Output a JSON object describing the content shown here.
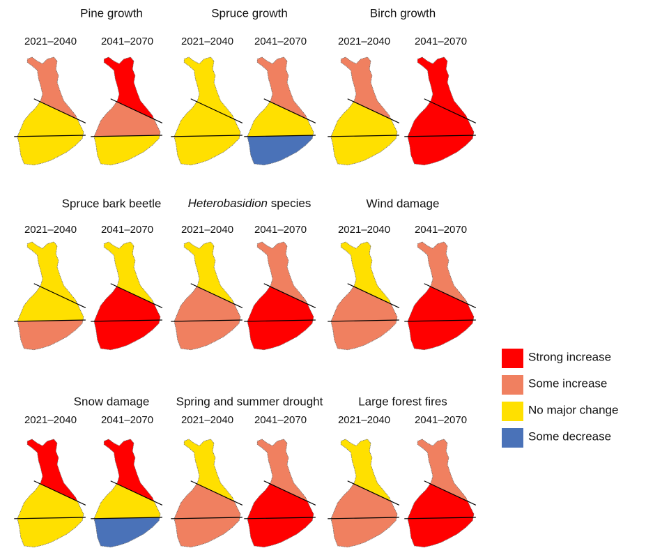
{
  "panels": [
    {
      "title": "Pine growth",
      "periods": [
        "2021–2040",
        "2041–2070"
      ],
      "maps": [
        [
          "Some increase",
          "No major change",
          "No major change"
        ],
        [
          "Strong increase",
          "Some increase",
          "No major change"
        ]
      ]
    },
    {
      "title": "Spruce growth",
      "periods": [
        "2021–2040",
        "2041–2070"
      ],
      "maps": [
        [
          "No major change",
          "No major change",
          "No major change"
        ],
        [
          "Some increase",
          "No major change",
          "Some decrease"
        ]
      ]
    },
    {
      "title": "Birch growth",
      "periods": [
        "2021–2040",
        "2041–2070"
      ],
      "maps": [
        [
          "Some increase",
          "No major change",
          "No major change"
        ],
        [
          "Strong increase",
          "Strong increase",
          "Strong increase"
        ]
      ]
    },
    {
      "title": "Spruce bark beetle",
      "periods": [
        "2021–2040",
        "2041–2070"
      ],
      "maps": [
        [
          "No major change",
          "No major change",
          "Some increase"
        ],
        [
          "No major change",
          "Strong increase",
          "Strong increase"
        ]
      ]
    },
    {
      "title_italic": "Heterobasidion",
      "title": "species",
      "periods": [
        "2021–2040",
        "2041–2070"
      ],
      "maps": [
        [
          "No major change",
          "Some increase",
          "Some increase"
        ],
        [
          "Some increase",
          "Strong increase",
          "Strong increase"
        ]
      ]
    },
    {
      "title": "Wind damage",
      "periods": [
        "2021–2040",
        "2041–2070"
      ],
      "maps": [
        [
          "No major change",
          "Some increase",
          "Some increase"
        ],
        [
          "Some increase",
          "Strong increase",
          "Strong increase"
        ]
      ]
    },
    {
      "title": "Snow damage",
      "periods": [
        "2021–2040",
        "2041–2070"
      ],
      "maps": [
        [
          "Strong increase",
          "No major change",
          "No major change"
        ],
        [
          "Strong increase",
          "No major change",
          "Some decrease"
        ]
      ]
    },
    {
      "title": "Spring and summer drought",
      "periods": [
        "2021–2040",
        "2041–2070"
      ],
      "maps": [
        [
          "No major change",
          "Some increase",
          "Some increase"
        ],
        [
          "Some increase",
          "Strong increase",
          "Strong increase"
        ]
      ]
    },
    {
      "title": "Large forest fires",
      "periods": [
        "2021–2040",
        "2041–2070"
      ],
      "maps": [
        [
          "No major change",
          "Some increase",
          "Some increase"
        ],
        [
          "Some increase",
          "Strong increase",
          "Strong increase"
        ]
      ]
    }
  ],
  "legend": [
    {
      "label": "Strong increase",
      "color": "#ff0000"
    },
    {
      "label": "Some increase",
      "color": "#f08060"
    },
    {
      "label": "No major change",
      "color": "#ffe000"
    },
    {
      "label": "Some decrease",
      "color": "#4a72b8"
    }
  ]
}
